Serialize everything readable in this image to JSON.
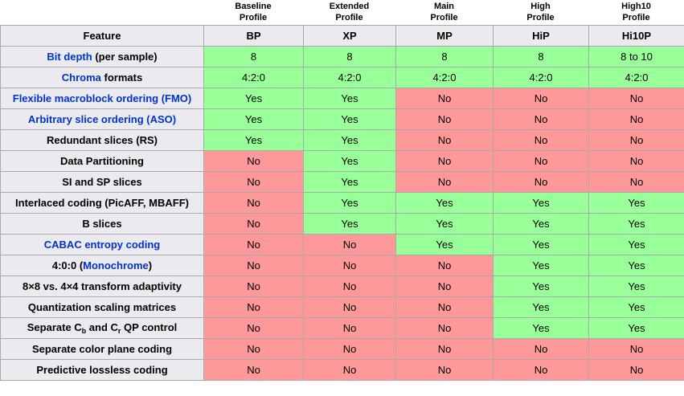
{
  "colors": {
    "yes_bg": "#99ff99",
    "no_bg": "#ff9999",
    "header_bg": "#eaeaef",
    "border": "#a7a9ae",
    "link_blue": "#0033cc"
  },
  "table": {
    "feature_header": "Feature",
    "profiles": [
      {
        "label": "Baseline\nProfile",
        "abbr": "BP"
      },
      {
        "label": "Extended\nProfile",
        "abbr": "XP"
      },
      {
        "label": "Main\nProfile",
        "abbr": "MP"
      },
      {
        "label": "High\nProfile",
        "abbr": "HiP"
      },
      {
        "label": "High10\nProfile",
        "abbr": "Hi10P"
      }
    ],
    "rows": [
      {
        "label": [
          {
            "text": "Bit depth",
            "link": true
          },
          {
            "text": " (per sample)"
          }
        ],
        "values": [
          {
            "t": "8",
            "c": "y"
          },
          {
            "t": "8",
            "c": "y"
          },
          {
            "t": "8",
            "c": "y"
          },
          {
            "t": "8",
            "c": "y"
          },
          {
            "t": "8 to 10",
            "c": "y"
          }
        ]
      },
      {
        "label": [
          {
            "text": "Chroma",
            "link": true
          },
          {
            "text": " formats"
          }
        ],
        "values": [
          {
            "t": "4:2:0",
            "c": "y"
          },
          {
            "t": "4:2:0",
            "c": "y"
          },
          {
            "t": "4:2:0",
            "c": "y"
          },
          {
            "t": "4:2:0",
            "c": "y"
          },
          {
            "t": "4:2:0",
            "c": "y"
          }
        ]
      },
      {
        "label": [
          {
            "text": "Flexible macroblock ordering (FMO)",
            "link": true
          }
        ],
        "values": [
          {
            "t": "Yes",
            "c": "y"
          },
          {
            "t": "Yes",
            "c": "y"
          },
          {
            "t": "No",
            "c": "n"
          },
          {
            "t": "No",
            "c": "n"
          },
          {
            "t": "No",
            "c": "n"
          }
        ]
      },
      {
        "label": [
          {
            "text": "Arbitrary slice ordering (ASO)",
            "link": true
          }
        ],
        "values": [
          {
            "t": "Yes",
            "c": "y"
          },
          {
            "t": "Yes",
            "c": "y"
          },
          {
            "t": "No",
            "c": "n"
          },
          {
            "t": "No",
            "c": "n"
          },
          {
            "t": "No",
            "c": "n"
          }
        ]
      },
      {
        "label": [
          {
            "text": "Redundant slices (RS)"
          }
        ],
        "values": [
          {
            "t": "Yes",
            "c": "y"
          },
          {
            "t": "Yes",
            "c": "y"
          },
          {
            "t": "No",
            "c": "n"
          },
          {
            "t": "No",
            "c": "n"
          },
          {
            "t": "No",
            "c": "n"
          }
        ]
      },
      {
        "label": [
          {
            "text": "Data Partitioning"
          }
        ],
        "values": [
          {
            "t": "No",
            "c": "n"
          },
          {
            "t": "Yes",
            "c": "y"
          },
          {
            "t": "No",
            "c": "n"
          },
          {
            "t": "No",
            "c": "n"
          },
          {
            "t": "No",
            "c": "n"
          }
        ]
      },
      {
        "label": [
          {
            "text": "SI and SP slices"
          }
        ],
        "values": [
          {
            "t": "No",
            "c": "n"
          },
          {
            "t": "Yes",
            "c": "y"
          },
          {
            "t": "No",
            "c": "n"
          },
          {
            "t": "No",
            "c": "n"
          },
          {
            "t": "No",
            "c": "n"
          }
        ]
      },
      {
        "label": [
          {
            "text": "Interlaced coding (PicAFF, MBAFF)"
          }
        ],
        "values": [
          {
            "t": "No",
            "c": "n"
          },
          {
            "t": "Yes",
            "c": "y"
          },
          {
            "t": "Yes",
            "c": "y"
          },
          {
            "t": "Yes",
            "c": "y"
          },
          {
            "t": "Yes",
            "c": "y"
          }
        ]
      },
      {
        "label": [
          {
            "text": "B slices"
          }
        ],
        "values": [
          {
            "t": "No",
            "c": "n"
          },
          {
            "t": "Yes",
            "c": "y"
          },
          {
            "t": "Yes",
            "c": "y"
          },
          {
            "t": "Yes",
            "c": "y"
          },
          {
            "t": "Yes",
            "c": "y"
          }
        ]
      },
      {
        "label": [
          {
            "text": "CABAC entropy coding",
            "link": true
          }
        ],
        "values": [
          {
            "t": "No",
            "c": "n"
          },
          {
            "t": "No",
            "c": "n"
          },
          {
            "t": "Yes",
            "c": "y"
          },
          {
            "t": "Yes",
            "c": "y"
          },
          {
            "t": "Yes",
            "c": "y"
          }
        ]
      },
      {
        "label": [
          {
            "text": "4:0:0 ("
          },
          {
            "text": "Monochrome",
            "link": true
          },
          {
            "text": ")"
          }
        ],
        "values": [
          {
            "t": "No",
            "c": "n"
          },
          {
            "t": "No",
            "c": "n"
          },
          {
            "t": "No",
            "c": "n"
          },
          {
            "t": "Yes",
            "c": "y"
          },
          {
            "t": "Yes",
            "c": "y"
          }
        ]
      },
      {
        "label": [
          {
            "text": "8×8 vs. 4×4 transform adaptivity"
          }
        ],
        "values": [
          {
            "t": "No",
            "c": "n"
          },
          {
            "t": "No",
            "c": "n"
          },
          {
            "t": "No",
            "c": "n"
          },
          {
            "t": "Yes",
            "c": "y"
          },
          {
            "t": "Yes",
            "c": "y"
          }
        ]
      },
      {
        "label": [
          {
            "text": "Quantization scaling matrices"
          }
        ],
        "values": [
          {
            "t": "No",
            "c": "n"
          },
          {
            "t": "No",
            "c": "n"
          },
          {
            "t": "No",
            "c": "n"
          },
          {
            "t": "Yes",
            "c": "y"
          },
          {
            "t": "Yes",
            "c": "y"
          }
        ]
      },
      {
        "label": [
          {
            "text": "Separate C"
          },
          {
            "text": "b",
            "sub": true
          },
          {
            "text": " and C"
          },
          {
            "text": "r",
            "sub": true
          },
          {
            "text": " QP control"
          }
        ],
        "values": [
          {
            "t": "No",
            "c": "n"
          },
          {
            "t": "No",
            "c": "n"
          },
          {
            "t": "No",
            "c": "n"
          },
          {
            "t": "Yes",
            "c": "y"
          },
          {
            "t": "Yes",
            "c": "y"
          }
        ]
      },
      {
        "label": [
          {
            "text": "Separate color plane coding"
          }
        ],
        "values": [
          {
            "t": "No",
            "c": "n"
          },
          {
            "t": "No",
            "c": "n"
          },
          {
            "t": "No",
            "c": "n"
          },
          {
            "t": "No",
            "c": "n"
          },
          {
            "t": "No",
            "c": "n"
          }
        ]
      },
      {
        "label": [
          {
            "text": "Predictive lossless coding"
          }
        ],
        "values": [
          {
            "t": "No",
            "c": "n"
          },
          {
            "t": "No",
            "c": "n"
          },
          {
            "t": "No",
            "c": "n"
          },
          {
            "t": "No",
            "c": "n"
          },
          {
            "t": "No",
            "c": "n"
          }
        ]
      }
    ]
  }
}
